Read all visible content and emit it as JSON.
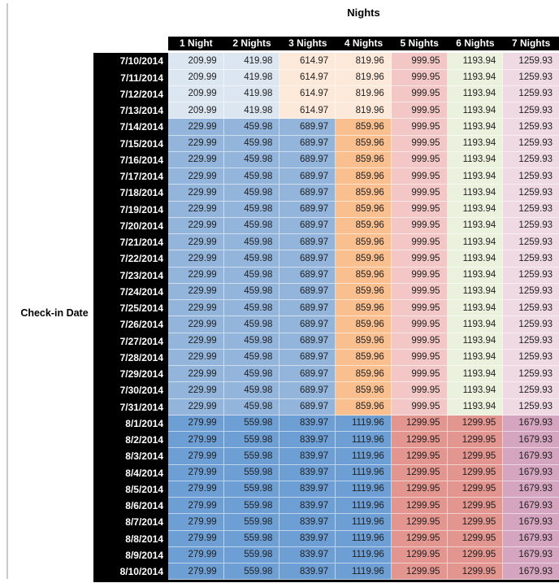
{
  "title": "Nights",
  "row_axis_label": "Check-in Date",
  "columns": [
    "1 Night",
    "2 Nights",
    "3 Nights",
    "4 Nights",
    "5 Nights",
    "6 Nights",
    "7 Nights"
  ],
  "palette": {
    "lightblue": "#DCE6F1",
    "peach": "#FDE9D9",
    "midblue": "#93B5DC",
    "orange": "#FABF8F",
    "pink": "#F2C7C5",
    "green": "#EAF1DD",
    "lavender": "#EFD9E2",
    "darkblue": "#6E9FD4",
    "salmon": "#E3958F",
    "mauve": "#D5A5BF",
    "header_bg": "#000000",
    "header_text": "#ffffff",
    "value_text": "#1f1f1f"
  },
  "groups": {
    "early": {
      "cell_colors": [
        "lightblue",
        "lightblue",
        "peach",
        "peach",
        "pink",
        "green",
        "lavender"
      ]
    },
    "mid": {
      "cell_colors": [
        "midblue",
        "midblue",
        "midblue",
        "orange",
        "pink",
        "green",
        "lavender"
      ]
    },
    "late": {
      "cell_colors": [
        "darkblue",
        "darkblue",
        "darkblue",
        "darkblue",
        "salmon",
        "salmon",
        "mauve"
      ]
    }
  },
  "rows": [
    {
      "date": "7/10/2014",
      "group": "early",
      "values": [
        "209.99",
        "419.98",
        "614.97",
        "819.96",
        "999.95",
        "1193.94",
        "1259.93"
      ]
    },
    {
      "date": "7/11/2014",
      "group": "early",
      "values": [
        "209.99",
        "419.98",
        "614.97",
        "819.96",
        "999.95",
        "1193.94",
        "1259.93"
      ]
    },
    {
      "date": "7/12/2014",
      "group": "early",
      "values": [
        "209.99",
        "419.98",
        "614.97",
        "819.96",
        "999.95",
        "1193.94",
        "1259.93"
      ]
    },
    {
      "date": "7/13/2014",
      "group": "early",
      "values": [
        "209.99",
        "419.98",
        "614.97",
        "819.96",
        "999.95",
        "1193.94",
        "1259.93"
      ]
    },
    {
      "date": "7/14/2014",
      "group": "mid",
      "values": [
        "229.99",
        "459.98",
        "689.97",
        "859.96",
        "999.95",
        "1193.94",
        "1259.93"
      ]
    },
    {
      "date": "7/15/2014",
      "group": "mid",
      "values": [
        "229.99",
        "459.98",
        "689.97",
        "859.96",
        "999.95",
        "1193.94",
        "1259.93"
      ]
    },
    {
      "date": "7/16/2014",
      "group": "mid",
      "values": [
        "229.99",
        "459.98",
        "689.97",
        "859.96",
        "999.95",
        "1193.94",
        "1259.93"
      ]
    },
    {
      "date": "7/17/2014",
      "group": "mid",
      "values": [
        "229.99",
        "459.98",
        "689.97",
        "859.96",
        "999.95",
        "1193.94",
        "1259.93"
      ]
    },
    {
      "date": "7/18/2014",
      "group": "mid",
      "values": [
        "229.99",
        "459.98",
        "689.97",
        "859.96",
        "999.95",
        "1193.94",
        "1259.93"
      ]
    },
    {
      "date": "7/19/2014",
      "group": "mid",
      "values": [
        "229.99",
        "459.98",
        "689.97",
        "859.96",
        "999.95",
        "1193.94",
        "1259.93"
      ]
    },
    {
      "date": "7/20/2014",
      "group": "mid",
      "values": [
        "229.99",
        "459.98",
        "689.97",
        "859.96",
        "999.95",
        "1193.94",
        "1259.93"
      ]
    },
    {
      "date": "7/21/2014",
      "group": "mid",
      "values": [
        "229.99",
        "459.98",
        "689.97",
        "859.96",
        "999.95",
        "1193.94",
        "1259.93"
      ]
    },
    {
      "date": "7/22/2014",
      "group": "mid",
      "values": [
        "229.99",
        "459.98",
        "689.97",
        "859.96",
        "999.95",
        "1193.94",
        "1259.93"
      ]
    },
    {
      "date": "7/23/2014",
      "group": "mid",
      "values": [
        "229.99",
        "459.98",
        "689.97",
        "859.96",
        "999.95",
        "1193.94",
        "1259.93"
      ]
    },
    {
      "date": "7/24/2014",
      "group": "mid",
      "values": [
        "229.99",
        "459.98",
        "689.97",
        "859.96",
        "999.95",
        "1193.94",
        "1259.93"
      ]
    },
    {
      "date": "7/25/2014",
      "group": "mid",
      "values": [
        "229.99",
        "459.98",
        "689.97",
        "859.96",
        "999.95",
        "1193.94",
        "1259.93"
      ]
    },
    {
      "date": "7/26/2014",
      "group": "mid",
      "values": [
        "229.99",
        "459.98",
        "689.97",
        "859.96",
        "999.95",
        "1193.94",
        "1259.93"
      ]
    },
    {
      "date": "7/27/2014",
      "group": "mid",
      "values": [
        "229.99",
        "459.98",
        "689.97",
        "859.96",
        "999.95",
        "1193.94",
        "1259.93"
      ]
    },
    {
      "date": "7/28/2014",
      "group": "mid",
      "values": [
        "229.99",
        "459.98",
        "689.97",
        "859.96",
        "999.95",
        "1193.94",
        "1259.93"
      ]
    },
    {
      "date": "7/29/2014",
      "group": "mid",
      "values": [
        "229.99",
        "459.98",
        "689.97",
        "859.96",
        "999.95",
        "1193.94",
        "1259.93"
      ]
    },
    {
      "date": "7/30/2014",
      "group": "mid",
      "values": [
        "229.99",
        "459.98",
        "689.97",
        "859.96",
        "999.95",
        "1193.94",
        "1259.93"
      ]
    },
    {
      "date": "7/31/2014",
      "group": "mid",
      "values": [
        "229.99",
        "459.98",
        "689.97",
        "859.96",
        "999.95",
        "1193.94",
        "1259.93"
      ]
    },
    {
      "date": "8/1/2014",
      "group": "late",
      "values": [
        "279.99",
        "559.98",
        "839.97",
        "1119.96",
        "1299.95",
        "1299.95",
        "1679.93"
      ]
    },
    {
      "date": "8/2/2014",
      "group": "late",
      "values": [
        "279.99",
        "559.98",
        "839.97",
        "1119.96",
        "1299.95",
        "1299.95",
        "1679.93"
      ]
    },
    {
      "date": "8/3/2014",
      "group": "late",
      "values": [
        "279.99",
        "559.98",
        "839.97",
        "1119.96",
        "1299.95",
        "1299.95",
        "1679.93"
      ]
    },
    {
      "date": "8/4/2014",
      "group": "late",
      "values": [
        "279.99",
        "559.98",
        "839.97",
        "1119.96",
        "1299.95",
        "1299.95",
        "1679.93"
      ]
    },
    {
      "date": "8/5/2014",
      "group": "late",
      "values": [
        "279.99",
        "559.98",
        "839.97",
        "1119.96",
        "1299.95",
        "1299.95",
        "1679.93"
      ]
    },
    {
      "date": "8/6/2014",
      "group": "late",
      "values": [
        "279.99",
        "559.98",
        "839.97",
        "1119.96",
        "1299.95",
        "1299.95",
        "1679.93"
      ]
    },
    {
      "date": "8/7/2014",
      "group": "late",
      "values": [
        "279.99",
        "559.98",
        "839.97",
        "1119.96",
        "1299.95",
        "1299.95",
        "1679.93"
      ]
    },
    {
      "date": "8/8/2014",
      "group": "late",
      "values": [
        "279.99",
        "559.98",
        "839.97",
        "1119.96",
        "1299.95",
        "1299.95",
        "1679.93"
      ]
    },
    {
      "date": "8/9/2014",
      "group": "late",
      "values": [
        "279.99",
        "559.98",
        "839.97",
        "1119.96",
        "1299.95",
        "1299.95",
        "1679.93"
      ]
    },
    {
      "date": "8/10/2014",
      "group": "late",
      "values": [
        "279.99",
        "559.98",
        "839.97",
        "1119.96",
        "1299.95",
        "1299.95",
        "1679.93"
      ]
    }
  ]
}
